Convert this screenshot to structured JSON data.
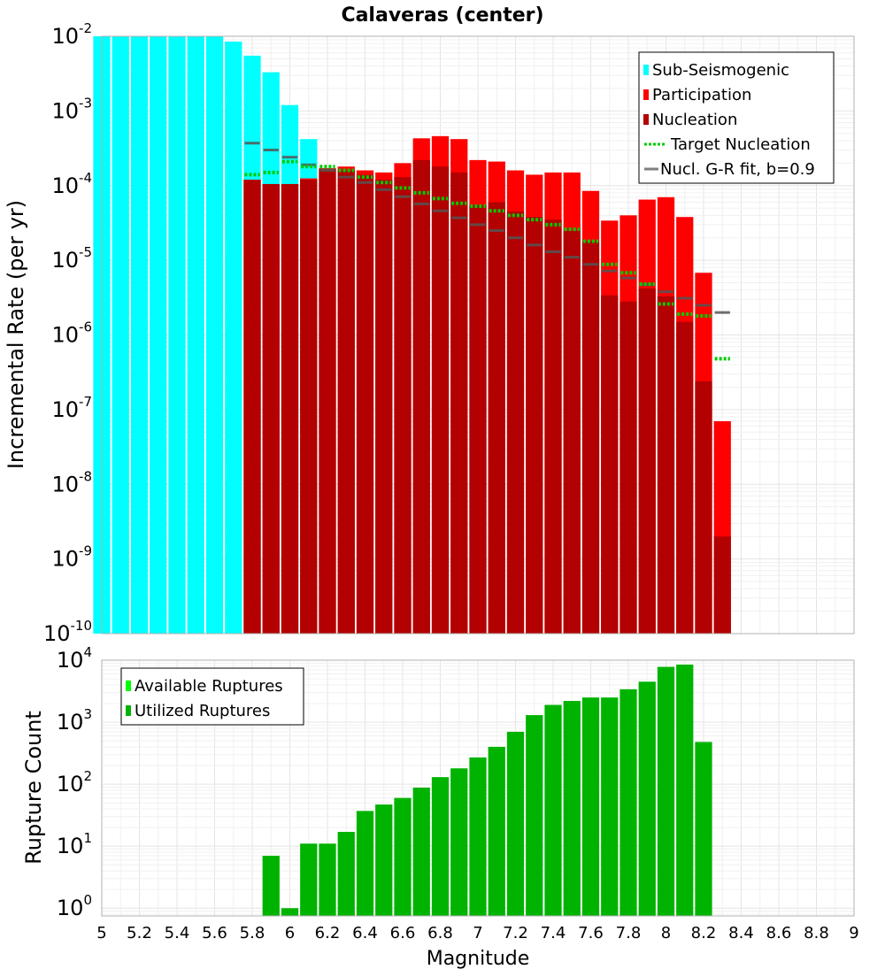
{
  "chart_data": [
    {
      "type": "bar",
      "title": "Calaveras (center)",
      "ylabel": "Incremental Rate (per yr)",
      "xlabel": "",
      "xlim": [
        5,
        9
      ],
      "ylim": [
        1e-10,
        0.01
      ],
      "yscale": "log",
      "grid": true,
      "legend_position": "top-right",
      "x": [
        5.0,
        5.1,
        5.2,
        5.3,
        5.4,
        5.5,
        5.6,
        5.7,
        5.8,
        5.9,
        6.0,
        6.1,
        6.2,
        6.3,
        6.4,
        6.5,
        6.6,
        6.7,
        6.8,
        6.9,
        7.0,
        7.1,
        7.2,
        7.3,
        7.4,
        7.5,
        7.6,
        7.7,
        7.8,
        7.9,
        8.0,
        8.1,
        8.2,
        8.3
      ],
      "series": [
        {
          "name": "Sub-Seismogenic",
          "color": "#00ffff",
          "values": [
            0.01,
            0.01,
            0.01,
            0.01,
            0.01,
            0.01,
            0.01,
            0.0085,
            0.0055,
            0.0033,
            0.0012,
            0.00042,
            null,
            null,
            null,
            null,
            null,
            null,
            null,
            null,
            null,
            null,
            null,
            null,
            null,
            null,
            null,
            null,
            null,
            null,
            null,
            null,
            null,
            null
          ]
        },
        {
          "name": "Participation",
          "color": "#ff0000",
          "values": [
            null,
            null,
            null,
            null,
            null,
            null,
            null,
            null,
            0.00012,
            0.000105,
            0.000105,
            0.000125,
            0.00017,
            0.00018,
            0.00016,
            0.00015,
            0.0002,
            0.00043,
            0.00046,
            0.00042,
            0.00022,
            0.00021,
            0.00016,
            0.00014,
            0.00015,
            0.00015,
            8.5e-05,
            3.4e-05,
            4e-05,
            6.5e-05,
            7e-05,
            3.8e-05,
            6.8e-06,
            7e-08
          ]
        },
        {
          "name": "Nucleation",
          "color": "#b30000",
          "values": [
            null,
            null,
            null,
            null,
            null,
            null,
            null,
            null,
            0.00012,
            0.000105,
            0.000105,
            0.00012,
            0.00017,
            0.00016,
            0.00014,
            0.00012,
            0.00013,
            0.00022,
            0.00018,
            0.00015,
            5.5e-05,
            6e-05,
            4.5e-05,
            3.8e-05,
            3.5e-05,
            2.5e-05,
            1.8e-05,
            3.4e-06,
            2.8e-06,
            4.2e-06,
            3.3e-06,
            1.5e-06,
            2.4e-07,
            2e-09
          ]
        },
        {
          "name": "Target Nucleation",
          "color": "#00cc00",
          "style": "dotted",
          "values": [
            null,
            null,
            null,
            null,
            null,
            null,
            null,
            null,
            0.00014,
            0.00015,
            0.00021,
            0.00018,
            0.00018,
            0.00016,
            0.00013,
            0.00011,
            9.3e-05,
            8e-05,
            6.7e-05,
            5.8e-05,
            5.3e-05,
            4.6e-05,
            4e-05,
            3.5e-05,
            3e-05,
            2.6e-05,
            1.8e-05,
            8.8e-06,
            6.8e-06,
            4.8e-06,
            2.6e-06,
            1.9e-06,
            1.8e-06,
            4.8e-07
          ]
        },
        {
          "name": "Nucl. G-R fit, b=0.9",
          "color": "#808080",
          "style": "dashes",
          "values": [
            null,
            null,
            null,
            null,
            null,
            null,
            null,
            null,
            0.00037,
            0.0003,
            0.00024,
            0.00019,
            0.00016,
            0.00013,
            0.00011,
            8.8e-05,
            7.1e-05,
            5.7e-05,
            4.6e-05,
            3.7e-05,
            3e-05,
            2.5e-05,
            2e-05,
            1.6e-05,
            1.3e-05,
            1.1e-05,
            8.8e-06,
            7.2e-06,
            5.8e-06,
            4.7e-06,
            3.8e-06,
            3.1e-06,
            2.5e-06,
            2e-06
          ]
        }
      ],
      "tick_labels": {
        "y": [
          {
            "value": 0.01,
            "base": "10",
            "exp": "-2"
          },
          {
            "value": 0.001,
            "base": "10",
            "exp": "-3"
          },
          {
            "value": 0.0001,
            "base": "10",
            "exp": "-4"
          },
          {
            "value": 1e-05,
            "base": "10",
            "exp": "-5"
          },
          {
            "value": 1e-06,
            "base": "10",
            "exp": "-6"
          },
          {
            "value": 1e-07,
            "base": "10",
            "exp": "-7"
          },
          {
            "value": 1e-08,
            "base": "10",
            "exp": "-8"
          },
          {
            "value": 1e-09,
            "base": "10",
            "exp": "-9"
          },
          {
            "value": 1e-10,
            "base": "10",
            "exp": "-10"
          }
        ]
      }
    },
    {
      "type": "bar",
      "title": "",
      "ylabel": "Rupture Count",
      "xlabel": "Magnitude",
      "xlim": [
        5,
        9
      ],
      "ylim": [
        0.75,
        10000
      ],
      "yscale": "log",
      "grid": true,
      "legend_position": "top-left",
      "x": [
        5.9,
        6.0,
        6.1,
        6.2,
        6.3,
        6.4,
        6.5,
        6.6,
        6.7,
        6.8,
        6.9,
        7.0,
        7.1,
        7.2,
        7.3,
        7.4,
        7.5,
        7.6,
        7.7,
        7.8,
        7.9,
        8.0,
        8.1,
        8.2
      ],
      "series": [
        {
          "name": "Available Ruptures",
          "color": "#00ff00",
          "values": [
            7,
            1,
            11,
            11,
            17,
            37,
            47,
            60,
            88,
            130,
            180,
            270,
            400,
            700,
            1300,
            1900,
            2200,
            2500,
            2500,
            3400,
            4500,
            7800,
            8500,
            480
          ]
        },
        {
          "name": "Utilized Ruptures",
          "color": "#00b300",
          "values": [
            7,
            1,
            11,
            11,
            17,
            37,
            47,
            60,
            88,
            130,
            180,
            270,
            400,
            700,
            1300,
            1900,
            2200,
            2500,
            2500,
            3400,
            4500,
            7800,
            8500,
            480
          ]
        }
      ],
      "tick_labels": {
        "x": [
          "5",
          "5.2",
          "5.4",
          "5.6",
          "5.8",
          "6",
          "6.2",
          "6.4",
          "6.6",
          "6.8",
          "7",
          "7.2",
          "7.4",
          "7.6",
          "7.8",
          "8",
          "8.2",
          "8.4",
          "8.6",
          "8.8",
          "9"
        ],
        "y": [
          {
            "value": 10000,
            "base": "10",
            "exp": "4"
          },
          {
            "value": 1000,
            "base": "10",
            "exp": "3"
          },
          {
            "value": 100,
            "base": "10",
            "exp": "2"
          },
          {
            "value": 10,
            "base": "10",
            "exp": "1"
          },
          {
            "value": 1,
            "base": "10",
            "exp": "0"
          }
        ]
      }
    }
  ]
}
